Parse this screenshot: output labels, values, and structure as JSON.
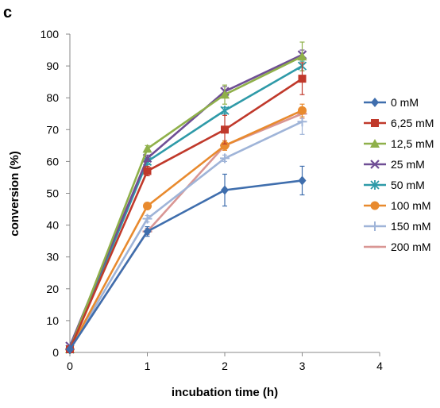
{
  "panel_label": "c",
  "chart_data": {
    "type": "line",
    "xlabel": "incubation time (h)",
    "ylabel": "conversion (%)",
    "xlim": [
      0,
      4
    ],
    "ylim": [
      0,
      100
    ],
    "x_ticks": [
      0,
      1,
      2,
      3,
      4
    ],
    "y_ticks": [
      0,
      10,
      20,
      30,
      40,
      50,
      60,
      70,
      80,
      90,
      100
    ],
    "grid": false,
    "legend_position": "right",
    "x": [
      0,
      1,
      2,
      3
    ],
    "series": [
      {
        "name": "0 mM",
        "color": "#3f6ead",
        "marker": "diamond",
        "values": [
          1,
          38,
          51,
          54
        ],
        "errors": [
          0.5,
          1.5,
          5,
          4.5
        ]
      },
      {
        "name": "6,25 mM",
        "color": "#c0392b",
        "marker": "square",
        "values": [
          1,
          57,
          70,
          86
        ],
        "errors": [
          0.5,
          1.5,
          4.5,
          5
        ]
      },
      {
        "name": "12,5 mM",
        "color": "#8fb04a",
        "marker": "triangle",
        "values": [
          1,
          64,
          81,
          93
        ],
        "errors": [
          0.5,
          1,
          3,
          4.5
        ]
      },
      {
        "name": "25 mM",
        "color": "#6f4e95",
        "marker": "x",
        "values": [
          2,
          61,
          82,
          93.5
        ],
        "errors": [
          0.5,
          1,
          1.5,
          1.5
        ]
      },
      {
        "name": "50 mM",
        "color": "#2e9aa8",
        "marker": "star",
        "values": [
          1,
          60,
          76,
          90
        ],
        "errors": [
          0.5,
          1,
          1,
          1.5
        ]
      },
      {
        "name": "100 mM",
        "color": "#e88a2e",
        "marker": "circle",
        "values": [
          1,
          46,
          65,
          76
        ],
        "errors": [
          0.5,
          1,
          1.5,
          2
        ]
      },
      {
        "name": "150 mM",
        "color": "#9fb4d8",
        "marker": "plus",
        "values": [
          1,
          42,
          61,
          72.5
        ],
        "errors": [
          0.5,
          1,
          1,
          4
        ]
      },
      {
        "name": "200 mM",
        "color": "#d99694",
        "marker": "dash",
        "values": [
          1,
          38,
          65,
          75
        ],
        "errors": [
          0.5,
          1,
          1.5,
          1.5
        ]
      }
    ]
  }
}
